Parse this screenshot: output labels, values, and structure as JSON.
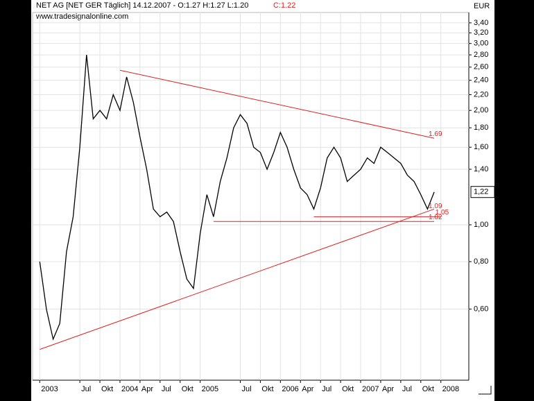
{
  "chart_data": {
    "type": "line",
    "title": "NET AG [NET GER  Täglich] 14.12.2007 - O:1.27 H:1.27 L:1.20",
    "close_label": "C:1.22",
    "source": "www.tradesignalonline.com",
    "unit": "EUR",
    "log_scale": true,
    "grid": true,
    "color": "#000000",
    "x": [
      "2003-01",
      "2003-02",
      "2003-03",
      "2003-04",
      "2003-05",
      "2003-06",
      "2003-07",
      "2003-08",
      "2003-09",
      "2003-10",
      "2003-11",
      "2003-12",
      "2004-01",
      "2004-02",
      "2004-03",
      "2004-04",
      "2004-05",
      "2004-06",
      "2004-07",
      "2004-08",
      "2004-09",
      "2004-10",
      "2004-11",
      "2004-12",
      "2005-01",
      "2005-02",
      "2005-03",
      "2005-04",
      "2005-05",
      "2005-06",
      "2005-07",
      "2005-08",
      "2005-09",
      "2005-10",
      "2005-11",
      "2005-12",
      "2006-01",
      "2006-02",
      "2006-03",
      "2006-04",
      "2006-05",
      "2006-06",
      "2006-07",
      "2006-08",
      "2006-09",
      "2006-10",
      "2006-11",
      "2006-12",
      "2007-01",
      "2007-02",
      "2007-03",
      "2007-04",
      "2007-05",
      "2007-06",
      "2007-07",
      "2007-08",
      "2007-09",
      "2007-10",
      "2007-11",
      "2007-12",
      "2008-01"
    ],
    "values": [
      0.8,
      0.6,
      0.5,
      0.55,
      0.85,
      1.05,
      1.6,
      2.8,
      1.9,
      2.0,
      1.9,
      2.2,
      2.0,
      2.45,
      2.1,
      1.7,
      1.4,
      1.1,
      1.05,
      1.08,
      1.02,
      0.85,
      0.72,
      0.68,
      0.95,
      1.2,
      1.05,
      1.3,
      1.5,
      1.8,
      1.95,
      1.85,
      1.6,
      1.55,
      1.4,
      1.55,
      1.75,
      1.6,
      1.4,
      1.25,
      1.2,
      1.1,
      1.25,
      1.5,
      1.6,
      1.5,
      1.3,
      1.35,
      1.4,
      1.5,
      1.45,
      1.6,
      1.55,
      1.5,
      1.45,
      1.35,
      1.3,
      1.2,
      1.1,
      1.22,
      null
    ],
    "last_label": {
      "value": 1.22,
      "label": "1,22"
    },
    "ylim": [
      0.39,
      3.62
    ],
    "yticks": [
      {
        "value": 0.6,
        "label": "0,60"
      },
      {
        "value": 0.8,
        "label": "0,80"
      },
      {
        "value": 1.0,
        "label": "1,00"
      },
      {
        "value": 1.4,
        "label": "1,40"
      },
      {
        "value": 1.6,
        "label": "1,60"
      },
      {
        "value": 1.8,
        "label": "1,80"
      },
      {
        "value": 2.0,
        "label": "2,00"
      },
      {
        "value": 2.2,
        "label": "2,20"
      },
      {
        "value": 2.4,
        "label": "2,40"
      },
      {
        "value": 2.6,
        "label": "2,60"
      },
      {
        "value": 2.8,
        "label": "2,80"
      },
      {
        "value": 3.0,
        "label": "3,00"
      },
      {
        "value": 3.2,
        "label": "3,20"
      },
      {
        "value": 3.4,
        "label": "3,40"
      }
    ],
    "xticks": [
      {
        "value": "2003-01",
        "label": "2003"
      },
      {
        "value": "2003-07",
        "label": "Jul"
      },
      {
        "value": "2003-10",
        "label": "Okt"
      },
      {
        "value": "2004-01",
        "label": "2004"
      },
      {
        "value": "2004-04",
        "label": "Apr"
      },
      {
        "value": "2004-07",
        "label": "Jul"
      },
      {
        "value": "2004-10",
        "label": "Okt"
      },
      {
        "value": "2005-01",
        "label": "2005"
      },
      {
        "value": "2005-07",
        "label": "Jul"
      },
      {
        "value": "2005-10",
        "label": "Okt"
      },
      {
        "value": "2006-01",
        "label": "2006"
      },
      {
        "value": "2006-04",
        "label": "Apr"
      },
      {
        "value": "2006-07",
        "label": "Jul"
      },
      {
        "value": "2006-10",
        "label": "Okt"
      },
      {
        "value": "2007-01",
        "label": "2007"
      },
      {
        "value": "2007-04",
        "label": "Apr"
      },
      {
        "value": "2007-07",
        "label": "Jul"
      },
      {
        "value": "2007-10",
        "label": "Okt"
      },
      {
        "value": "2008-01",
        "label": "2008"
      }
    ],
    "trendline_color": "#e02020",
    "trendlines": [
      {
        "x": [
          "2004-01",
          "2007-12"
        ],
        "values": [
          2.55,
          1.69
        ],
        "label": 1.69
      },
      {
        "x": [
          "2003-01",
          "2007-12"
        ],
        "values": [
          0.47,
          1.1
        ],
        "label": 1.09
      },
      {
        "x": [
          "2006-06",
          "2008-01"
        ],
        "values": [
          1.05,
          1.05
        ],
        "label": 1.05
      },
      {
        "x": [
          "2005-03",
          "2007-12"
        ],
        "values": [
          1.02,
          1.02
        ],
        "label": 1.02
      }
    ]
  }
}
